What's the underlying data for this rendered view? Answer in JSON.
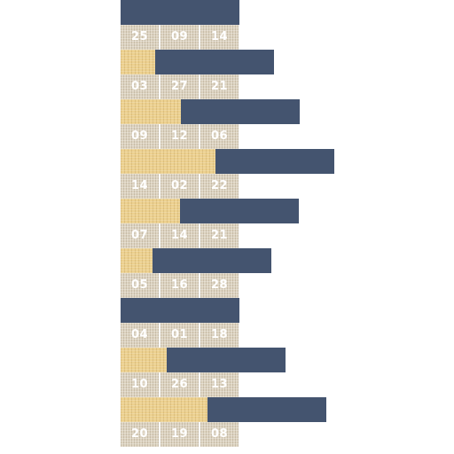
{
  "colors": {
    "bar": "#44546f",
    "sand": "#ecd08e",
    "cell": "#ddd3c0",
    "text": "#ffffff"
  },
  "rows": [
    {
      "shift": 0.0,
      "numbers": [
        "25",
        "09",
        "14"
      ]
    },
    {
      "shift": 0.29,
      "numbers": [
        "03",
        "27",
        "21"
      ]
    },
    {
      "shift": 0.51,
      "numbers": [
        "09",
        "12",
        "06"
      ]
    },
    {
      "shift": 0.8,
      "numbers": [
        "14",
        "02",
        "22"
      ]
    },
    {
      "shift": 0.5,
      "numbers": [
        "07",
        "14",
        "21"
      ]
    },
    {
      "shift": 0.27,
      "numbers": [
        "05",
        "16",
        "28"
      ]
    },
    {
      "shift": 0.0,
      "numbers": [
        "04",
        "01",
        "18"
      ]
    },
    {
      "shift": 0.39,
      "numbers": [
        "10",
        "26",
        "13"
      ]
    },
    {
      "shift": 0.73,
      "numbers": [
        "20",
        "19",
        "08"
      ]
    }
  ]
}
